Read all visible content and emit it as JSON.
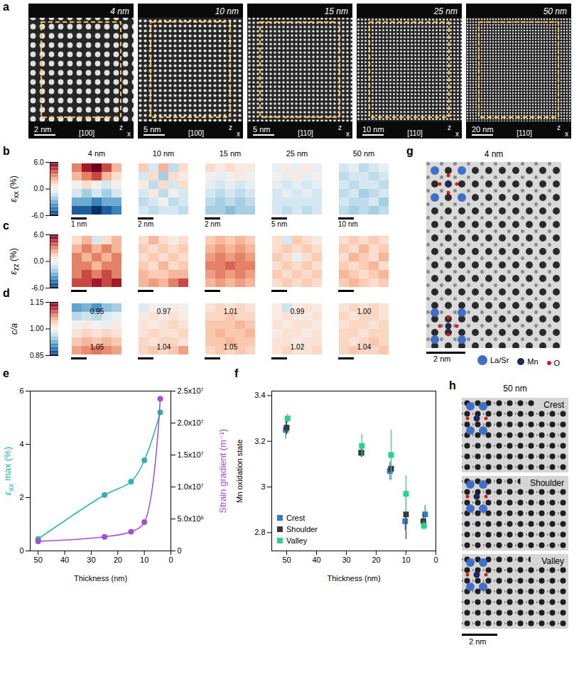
{
  "thicknesses": [
    "4 nm",
    "10 nm",
    "15 nm",
    "25 nm",
    "50 nm"
  ],
  "panel_a": {
    "letter": "a",
    "scale_bars": [
      "2 nm",
      "5 nm",
      "5 nm",
      "10 nm",
      "20 nm"
    ],
    "zone_axes": [
      "[100]",
      "[100]",
      "[110]",
      "[110]",
      "[110]"
    ],
    "axis_labels": [
      "z",
      "x"
    ]
  },
  "strain_maps": {
    "scale_bars": [
      "1 nm",
      "2 nm",
      "2 nm",
      "5 nm",
      "10 nm"
    ],
    "rows": [
      {
        "letter": "b",
        "label": {
          "main": "ε",
          "sub": "xx",
          "after": " (%)"
        },
        "colorbar": {
          "range": [
            -6,
            6
          ],
          "ticks": [
            {
              "value": -6,
              "label": "-6.0"
            },
            {
              "value": 0,
              "label": "0.0"
            },
            {
              "value": 6,
              "label": "6.0"
            }
          ]
        },
        "cells": [
          [
            [
              3,
              5,
              6,
              4,
              2
            ],
            [
              2,
              3,
              4,
              2,
              1
            ],
            [
              0,
              1,
              0,
              -1,
              0
            ],
            [
              -1,
              -2,
              -1,
              -2,
              -1
            ],
            [
              -3,
              -3,
              -4,
              -3,
              -3
            ],
            [
              -5,
              -5,
              -6,
              -5,
              -4
            ]
          ],
          [
            [
              1.5,
              -1,
              2,
              -1.5,
              1
            ],
            [
              -1,
              1,
              -2,
              1,
              0.5
            ],
            [
              0.5,
              -1.5,
              1,
              -1,
              1
            ],
            [
              -1,
              0.5,
              -1.5,
              0,
              -1
            ],
            [
              -1.5,
              -1,
              0,
              -1.5,
              -1
            ],
            [
              -1,
              -1.5,
              -1,
              -1,
              -1.5
            ]
          ],
          [
            [
              1,
              0.5,
              1,
              0.5,
              0.5
            ],
            [
              0,
              -0.5,
              0,
              0.5,
              0
            ],
            [
              -0.5,
              -1,
              -0.5,
              -1,
              -0.5
            ],
            [
              -1,
              -1.5,
              -1,
              -1.5,
              -1
            ],
            [
              -1.5,
              -2,
              -1.5,
              -2,
              -1.5
            ],
            [
              -2,
              -2,
              -2.5,
              -2,
              -2
            ]
          ],
          [
            [
              -0.5,
              0.5,
              -0.5,
              0.5,
              -0.5
            ],
            [
              0,
              -0.5,
              0.5,
              -0.5,
              0
            ],
            [
              -0.5,
              -1,
              -0.5,
              -1,
              -0.5
            ],
            [
              -1,
              -0.5,
              -1,
              -0.5,
              -1
            ],
            [
              -1,
              -1,
              -1,
              -1,
              -1
            ],
            [
              -1,
              -1.5,
              -1,
              -1.5,
              -1
            ]
          ],
          [
            [
              -1,
              -0.5,
              -1.5,
              -1,
              -0.5
            ],
            [
              -1.5,
              -1,
              -1,
              -1.5,
              -1
            ],
            [
              -1,
              -1.5,
              -1,
              -1,
              -1.5
            ],
            [
              -1.5,
              -1,
              -2,
              -1.5,
              -1
            ],
            [
              -1,
              -1.5,
              -1.5,
              -1,
              -2
            ],
            [
              -1.5,
              -2,
              -1.5,
              -2,
              -1.5
            ]
          ]
        ]
      },
      {
        "letter": "c",
        "label": {
          "main": "ε",
          "sub": "zz",
          "after": " (%)"
        },
        "colorbar": {
          "range": [
            -6,
            6
          ],
          "ticks": [
            {
              "value": -6,
              "label": "-6.0"
            },
            {
              "value": 0,
              "label": "0.0"
            },
            {
              "value": 6,
              "label": "6.0"
            }
          ]
        },
        "cells": [
          [
            [
              1,
              2,
              -1,
              1,
              2
            ],
            [
              2,
              3,
              2,
              3,
              2
            ],
            [
              3,
              2,
              3,
              2,
              3
            ],
            [
              3,
              3,
              2,
              3,
              3
            ],
            [
              3,
              4,
              3,
              4,
              3
            ],
            [
              4,
              4,
              5,
              4,
              5
            ]
          ],
          [
            [
              1,
              2,
              1,
              0.5,
              1
            ],
            [
              1.5,
              1,
              1.5,
              1,
              1.5
            ],
            [
              1,
              1.5,
              1,
              1.5,
              1
            ],
            [
              1.5,
              1,
              2,
              1,
              1.5
            ],
            [
              2,
              1.5,
              1.5,
              2,
              2
            ],
            [
              2,
              2.5,
              2,
              3,
              4
            ]
          ],
          [
            [
              1.5,
              2,
              1.5,
              2,
              1.5
            ],
            [
              2,
              2.5,
              2,
              2.5,
              2
            ],
            [
              2.5,
              3,
              2.5,
              3,
              2.5
            ],
            [
              3,
              3,
              3.5,
              3,
              3
            ],
            [
              2.5,
              3,
              2.5,
              3,
              2.5
            ],
            [
              2,
              2.5,
              2,
              2.5,
              2
            ]
          ],
          [
            [
              1,
              -1,
              1.5,
              1,
              0.5
            ],
            [
              1,
              1.5,
              1,
              1.5,
              1
            ],
            [
              1.5,
              1,
              -0.5,
              1,
              1.5
            ],
            [
              1,
              1.5,
              1,
              1.5,
              1
            ],
            [
              1.5,
              1,
              1.5,
              1,
              1.5
            ],
            [
              1,
              1.5,
              1,
              1.5,
              1
            ]
          ],
          [
            [
              1,
              1.5,
              1,
              1.5,
              1
            ],
            [
              1.5,
              1,
              2,
              1,
              1.5
            ],
            [
              1,
              2,
              1.5,
              1,
              2
            ],
            [
              1.5,
              1,
              1.5,
              2,
              1
            ],
            [
              2,
              1.5,
              1,
              1.5,
              2
            ],
            [
              1.5,
              2,
              1.5,
              1,
              1.5
            ]
          ]
        ]
      },
      {
        "letter": "d",
        "label": {
          "main": "c/a"
        },
        "colorbar": {
          "range": [
            0.85,
            1.15
          ],
          "ticks": [
            0.85,
            {
              "value": 1,
              "label": "1.00"
            },
            1.15
          ]
        },
        "annotations": [
          {
            "top": "0.95",
            "bottom": "1.05"
          },
          {
            "top": "0.97",
            "bottom": "1.04"
          },
          {
            "top": "1.01",
            "bottom": "1.05"
          },
          {
            "top": "0.99",
            "bottom": "1.02"
          },
          {
            "top": "1.00",
            "bottom": "1.04"
          }
        ],
        "cells": [
          [
            [
              0.92,
              0.93,
              0.91,
              0.94,
              0.95
            ],
            [
              0.96,
              0.97,
              0.96,
              0.98,
              0.99
            ],
            [
              1.0,
              1.01,
              1.0,
              0.99,
              1.01
            ],
            [
              1.02,
              1.03,
              1.02,
              1.03,
              1.02
            ],
            [
              1.04,
              1.05,
              1.04,
              1.05,
              1.04
            ],
            [
              1.06,
              1.07,
              1.08,
              1.07,
              1.06
            ]
          ],
          [
            [
              0.98,
              1.0,
              0.99,
              1.01,
              1.0
            ],
            [
              1.01,
              1.02,
              1.01,
              1.02,
              1.01
            ],
            [
              1.02,
              1.01,
              1.02,
              1.03,
              1.02
            ],
            [
              1.02,
              1.03,
              1.02,
              1.02,
              1.03
            ],
            [
              1.03,
              1.02,
              1.03,
              1.03,
              1.02
            ],
            [
              1.03,
              1.04,
              1.03,
              1.04,
              1.06
            ]
          ],
          [
            [
              1.02,
              1.03,
              1.02,
              1.03,
              1.02
            ],
            [
              1.03,
              1.03,
              1.04,
              1.03,
              1.03
            ],
            [
              1.04,
              1.04,
              1.04,
              1.05,
              1.04
            ],
            [
              1.04,
              1.05,
              1.04,
              1.04,
              1.05
            ],
            [
              1.04,
              1.04,
              1.05,
              1.04,
              1.04
            ],
            [
              1.03,
              1.04,
              1.03,
              1.04,
              1.03
            ]
          ],
          [
            [
              1.01,
              0.97,
              1.01,
              1.02,
              1.01
            ],
            [
              1.01,
              1.02,
              1.01,
              1.01,
              1.02
            ],
            [
              1.02,
              1.01,
              1.02,
              1.02,
              1.01
            ],
            [
              1.01,
              1.02,
              1.02,
              1.01,
              1.02
            ],
            [
              1.02,
              1.02,
              1.01,
              1.02,
              1.02
            ],
            [
              1.02,
              1.03,
              1.02,
              1.02,
              1.03
            ]
          ],
          [
            [
              1.02,
              1.03,
              1.02,
              1.03,
              1.02
            ],
            [
              1.03,
              1.02,
              1.03,
              1.03,
              1.02
            ],
            [
              1.02,
              1.03,
              1.03,
              1.02,
              1.03
            ],
            [
              1.03,
              1.03,
              1.02,
              1.03,
              1.03
            ],
            [
              1.03,
              1.02,
              1.03,
              1.04,
              1.03
            ],
            [
              1.03,
              1.04,
              1.03,
              1.03,
              1.04
            ]
          ]
        ]
      }
    ]
  },
  "chart_data": [
    {
      "letter": "e",
      "type": "line",
      "x_label": "Thickness (nm)",
      "y_label": {
        "main": "ε",
        "sub": "xx",
        "after": " max (%)"
      },
      "y2_label": "Strain gradient (m⁻¹)",
      "xlim": [
        53,
        0
      ],
      "xticks": [
        50,
        40,
        30,
        20,
        10,
        0
      ],
      "ylim": [
        0,
        6
      ],
      "yticks": [
        0,
        2,
        4,
        6
      ],
      "y2lim": [
        0,
        25000000
      ],
      "y2ticks": [
        0,
        {
          "value": 5000000,
          "label": "5.0x10⁶"
        },
        {
          "value": 10000000,
          "label": "1.0x10⁷"
        },
        {
          "value": 15000000,
          "label": "1.5x10⁷"
        },
        {
          "value": 20000000,
          "label": "2.0x10⁷"
        },
        {
          "value": 25000000,
          "label": "2.5x10⁷"
        }
      ],
      "series": [
        {
          "color": "#2cb3ad",
          "marker": "circle",
          "x": [
            50,
            25,
            15,
            10,
            4
          ],
          "values": [
            0.45,
            2.1,
            2.6,
            3.4,
            5.2
          ]
        },
        {
          "color": "#a24fd8",
          "marker": "circle",
          "axis": "y2",
          "x": [
            50,
            25,
            15,
            10,
            4
          ],
          "values": [
            1500000,
            2200000,
            3000000,
            4500000,
            23800000
          ]
        }
      ]
    },
    {
      "letter": "f",
      "type": "scatter",
      "x_label": "Thickness (nm)",
      "y_label": "Mn oxidation state",
      "xlim": [
        55,
        0
      ],
      "xticks": [
        50,
        40,
        30,
        20,
        10,
        0
      ],
      "ylim": [
        2.72,
        3.42
      ],
      "yticks": [
        2.8,
        3,
        3.2,
        3.4
      ],
      "legend": "lower left",
      "series": [
        {
          "name": "Crest",
          "color": "#2f7fc1",
          "marker": "square",
          "x": [
            50.3,
            25,
            15.4,
            10.3,
            3.6
          ],
          "values": [
            3.25,
            3.15,
            3.07,
            2.85,
            2.88
          ],
          "errors": [
            0.04,
            0.02,
            0.04,
            0.04,
            0.04
          ]
        },
        {
          "name": "Shoulder",
          "color": "#3a3a3a",
          "marker": "square",
          "x": [
            50,
            25,
            15,
            10,
            4.2
          ],
          "values": [
            3.26,
            3.15,
            3.08,
            2.88,
            2.85
          ],
          "errors": [
            0.03,
            0.02,
            0.05,
            0.11,
            0.03
          ]
        },
        {
          "name": "Valley",
          "color": "#2ed08a",
          "marker": "square",
          "x": [
            49.7,
            24.8,
            15,
            10,
            4
          ],
          "values": [
            3.3,
            3.18,
            3.14,
            2.97,
            2.83
          ],
          "errors": [
            0.02,
            0.05,
            0.11,
            0.08,
            0.02
          ]
        }
      ]
    }
  ],
  "panel_g": {
    "letter": "g",
    "title": "4 nm",
    "scale_bar": "2 nm",
    "legend": [
      {
        "name": "La/Sr",
        "color": "#3f6fc6"
      },
      {
        "name": "Mn",
        "color": "#1e2a55"
      },
      {
        "name": "O",
        "color": "#d01f1f"
      }
    ]
  },
  "panel_h": {
    "letter": "h",
    "title": "50 nm",
    "scale_bar": "2 nm",
    "panels": [
      "Crest",
      "Shoulder",
      "Valley"
    ]
  }
}
